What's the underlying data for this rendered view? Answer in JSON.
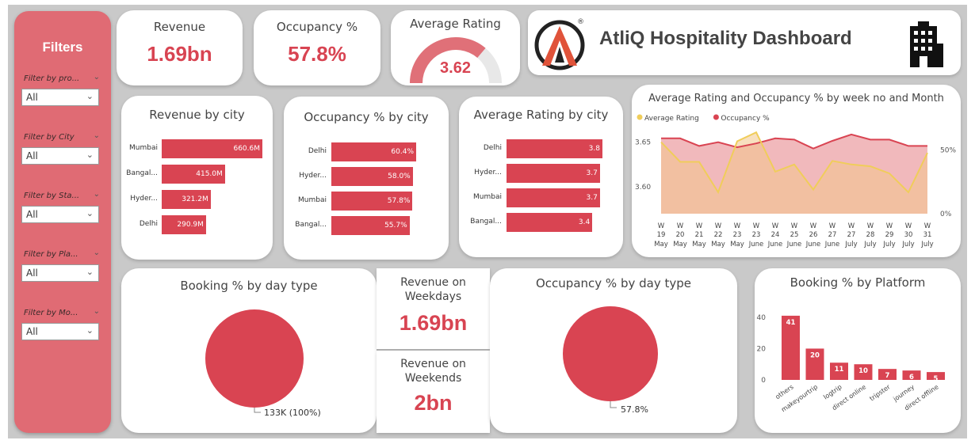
{
  "filters": {
    "title": "Filters",
    "items": [
      {
        "label": "Filter by pro...",
        "value": "All"
      },
      {
        "label": "Filter by City",
        "value": "All"
      },
      {
        "label": "Filter by Sta...",
        "value": "All"
      },
      {
        "label": "Filter by Pla...",
        "value": "All"
      },
      {
        "label": "Filter by Mo...",
        "value": "All"
      }
    ]
  },
  "kpis": {
    "revenue": {
      "title": "Revenue",
      "value": "1.69bn"
    },
    "occupancy": {
      "title": "Occupancy %",
      "value": "57.8%"
    },
    "rating": {
      "title": "Average Rating",
      "value": "3.62",
      "gauge_fraction": 0.724
    }
  },
  "header": {
    "title": "AtliQ Hospitality Dashboard",
    "logo_icon": "atliq-logo-icon",
    "building_icon": "hotel-building-icon",
    "registered": "®"
  },
  "colors": {
    "accent": "#d94452",
    "filter_panel": "#e06b74",
    "rating_line": "#f0cd5a",
    "occupancy_area": "#f0b5b8"
  },
  "revenue_by_city": {
    "title": "Revenue by city",
    "chart_data": {
      "type": "bar",
      "orientation": "horizontal",
      "categories": [
        "Mumbai",
        "Bangal...",
        "Hyder...",
        "Delhi"
      ],
      "values": [
        660.6,
        415.0,
        321.2,
        290.9
      ],
      "labels": [
        "660.6M",
        "415.0M",
        "321.2M",
        "290.9M"
      ]
    }
  },
  "occupancy_by_city": {
    "title": "Occupancy % by city",
    "chart_data": {
      "type": "bar",
      "orientation": "horizontal",
      "categories": [
        "Delhi",
        "Hyder...",
        "Mumbai",
        "Bangal..."
      ],
      "values": [
        60.4,
        58.0,
        57.8,
        55.7
      ],
      "labels": [
        "60.4%",
        "58.0%",
        "57.8%",
        "55.7%"
      ]
    }
  },
  "rating_by_city": {
    "title": "Average Rating by city",
    "chart_data": {
      "type": "bar",
      "orientation": "horizontal",
      "categories": [
        "Delhi",
        "Hyder...",
        "Mumbai",
        "Bangal..."
      ],
      "values": [
        3.8,
        3.7,
        3.7,
        3.4
      ],
      "labels": [
        "3.8",
        "3.7",
        "3.7",
        "3.4"
      ]
    }
  },
  "weekly_chart": {
    "title": "Average Rating and Occupancy % by week no and Month",
    "legend": [
      {
        "name": "Average Rating",
        "color": "#f0cd5a"
      },
      {
        "name": "Occupancy %",
        "color": "#d94452"
      }
    ],
    "chart_data": {
      "type": "area",
      "x_weeks": [
        "W 19",
        "W 20",
        "W 21",
        "W 22",
        "W 23",
        "W 23",
        "W 24",
        "W 25",
        "W 26",
        "W 27",
        "W 27",
        "W 28",
        "W 29",
        "W 30",
        "W 31"
      ],
      "x_months": [
        "May",
        "May",
        "May",
        "May",
        "May",
        "June",
        "June",
        "June",
        "June",
        "June",
        "July",
        "July",
        "July",
        "July",
        "July"
      ],
      "series": [
        {
          "name": "Average Rating",
          "values": [
            3.65,
            3.628,
            3.628,
            3.594,
            3.651,
            3.661,
            3.617,
            3.625,
            3.597,
            3.629,
            3.625,
            3.623,
            3.615,
            3.594,
            3.638
          ]
        },
        {
          "name": "Occupancy %",
          "values": [
            59,
            59,
            53,
            56,
            52,
            55,
            59,
            58,
            51,
            57,
            62,
            58,
            58,
            53,
            53
          ]
        }
      ],
      "y_left": {
        "ticks": [
          "3.60",
          "3.65"
        ],
        "range": [
          3.57,
          3.67
        ]
      },
      "y_right": {
        "ticks": [
          "0%",
          "50%"
        ],
        "range": [
          0,
          70
        ]
      }
    }
  },
  "booking_day_type": {
    "title": "Booking % by day type",
    "chart_data": {
      "type": "pie",
      "categories": [
        "Weekday/Weekend"
      ],
      "values": [
        100
      ],
      "label": "133K (100%)"
    }
  },
  "revenue_weekdays": {
    "title": "Revenue on Weekdays",
    "value": "1.69bn"
  },
  "revenue_weekends": {
    "title": "Revenue on Weekends",
    "value": "2bn"
  },
  "occupancy_day_type": {
    "title": "Occupancy % by day type",
    "chart_data": {
      "type": "pie",
      "values": [
        100
      ],
      "label": "57.8%"
    }
  },
  "booking_platform": {
    "title": "Booking % by Platform",
    "chart_data": {
      "type": "bar",
      "categories": [
        "others",
        "makeyourtrip",
        "logtrip",
        "direct online",
        "tripster",
        "journey",
        "direct offline"
      ],
      "values": [
        41,
        20,
        11,
        10,
        7,
        6,
        5
      ],
      "y_ticks": [
        "0",
        "20",
        "40"
      ],
      "ylim": [
        0,
        45
      ]
    }
  }
}
